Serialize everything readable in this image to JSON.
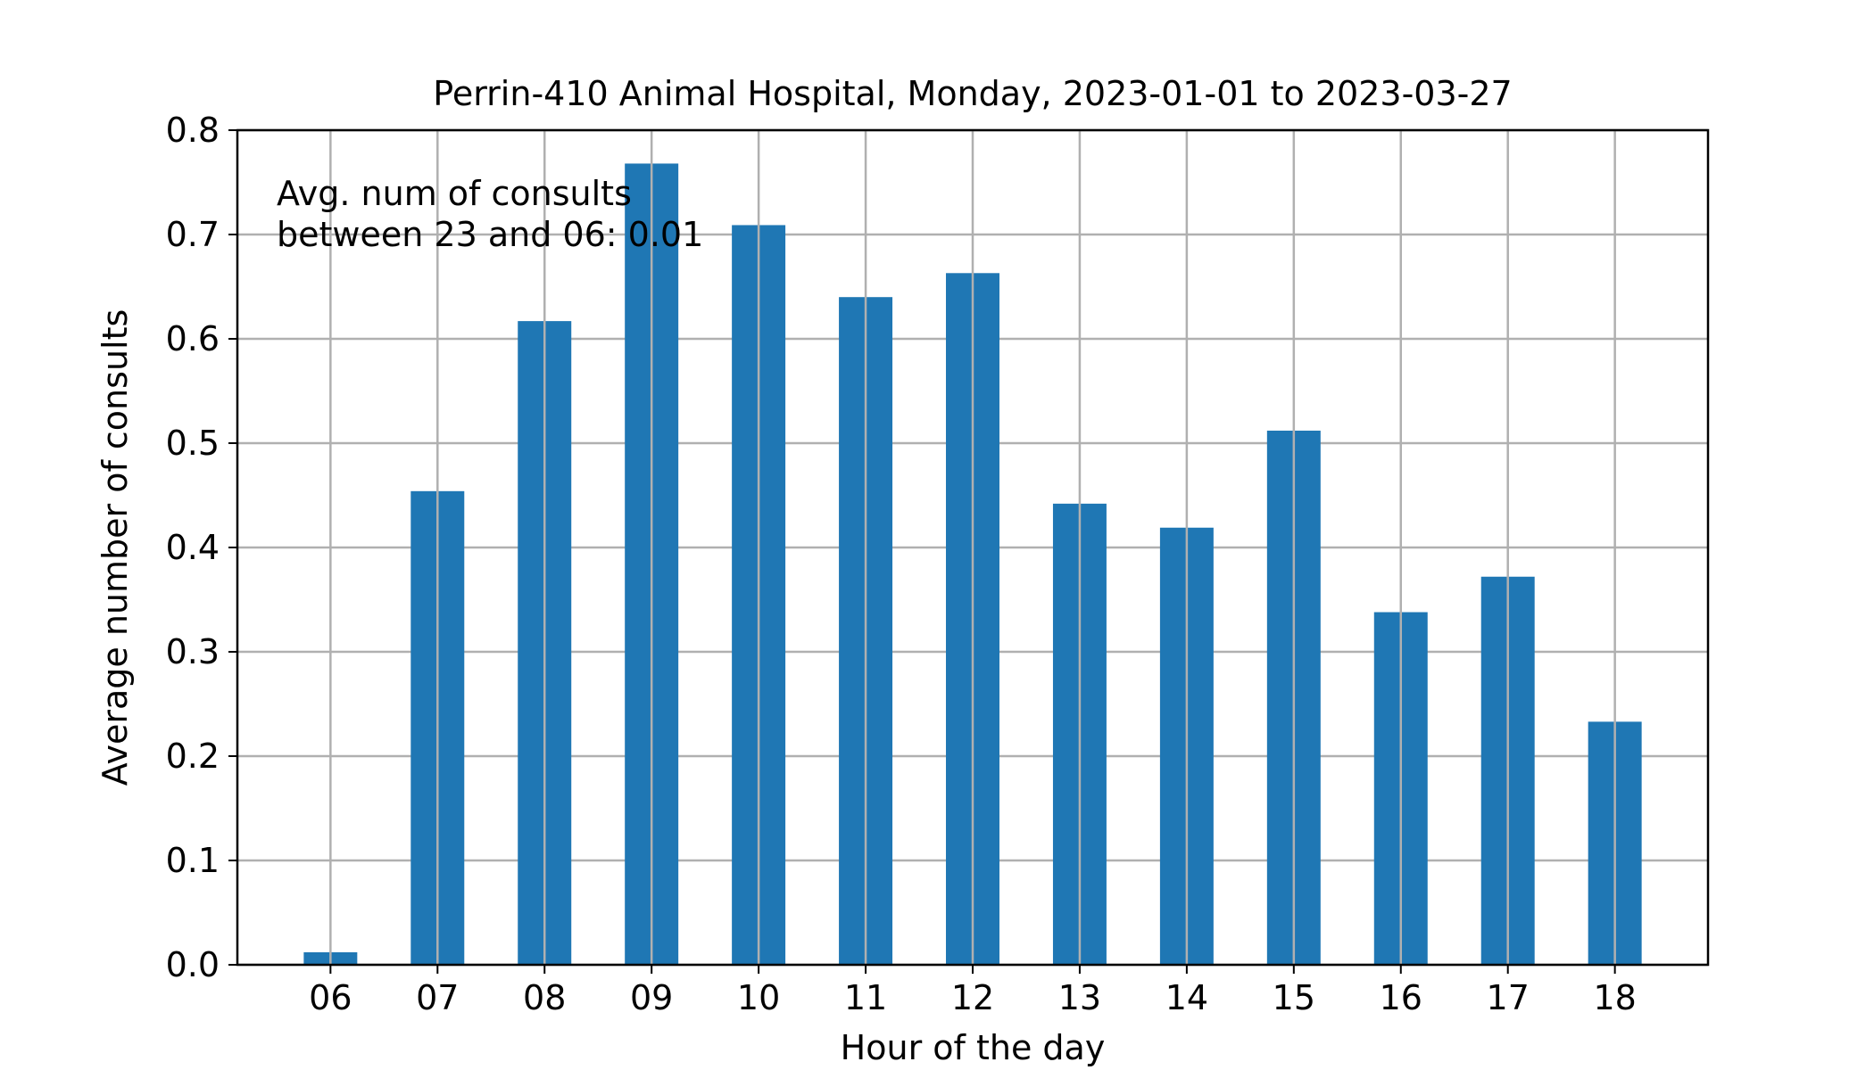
{
  "chart_data": {
    "type": "bar",
    "title": "Perrin-410 Animal Hospital, Monday, 2023-01-01 to 2023-03-27",
    "xlabel": "Hour of the day",
    "ylabel": "Average number of consults",
    "categories": [
      "06",
      "07",
      "08",
      "09",
      "10",
      "11",
      "12",
      "13",
      "14",
      "15",
      "16",
      "17",
      "18"
    ],
    "values": [
      0.012,
      0.454,
      0.617,
      0.768,
      0.709,
      0.64,
      0.663,
      0.442,
      0.419,
      0.512,
      0.338,
      0.372,
      0.233
    ],
    "ylim": [
      0.0,
      0.8
    ],
    "yticks": [
      "0.0",
      "0.1",
      "0.2",
      "0.3",
      "0.4",
      "0.5",
      "0.6",
      "0.7",
      "0.8"
    ],
    "ytick_values": [
      0.0,
      0.1,
      0.2,
      0.3,
      0.4,
      0.5,
      0.6,
      0.7,
      0.8
    ],
    "grid": true,
    "bar_color": "#1f77b4",
    "grid_color": "#b0b0b0",
    "annotation": {
      "line1": "Avg. num of consults",
      "line2": "between 23 and 06: 0.01"
    }
  }
}
